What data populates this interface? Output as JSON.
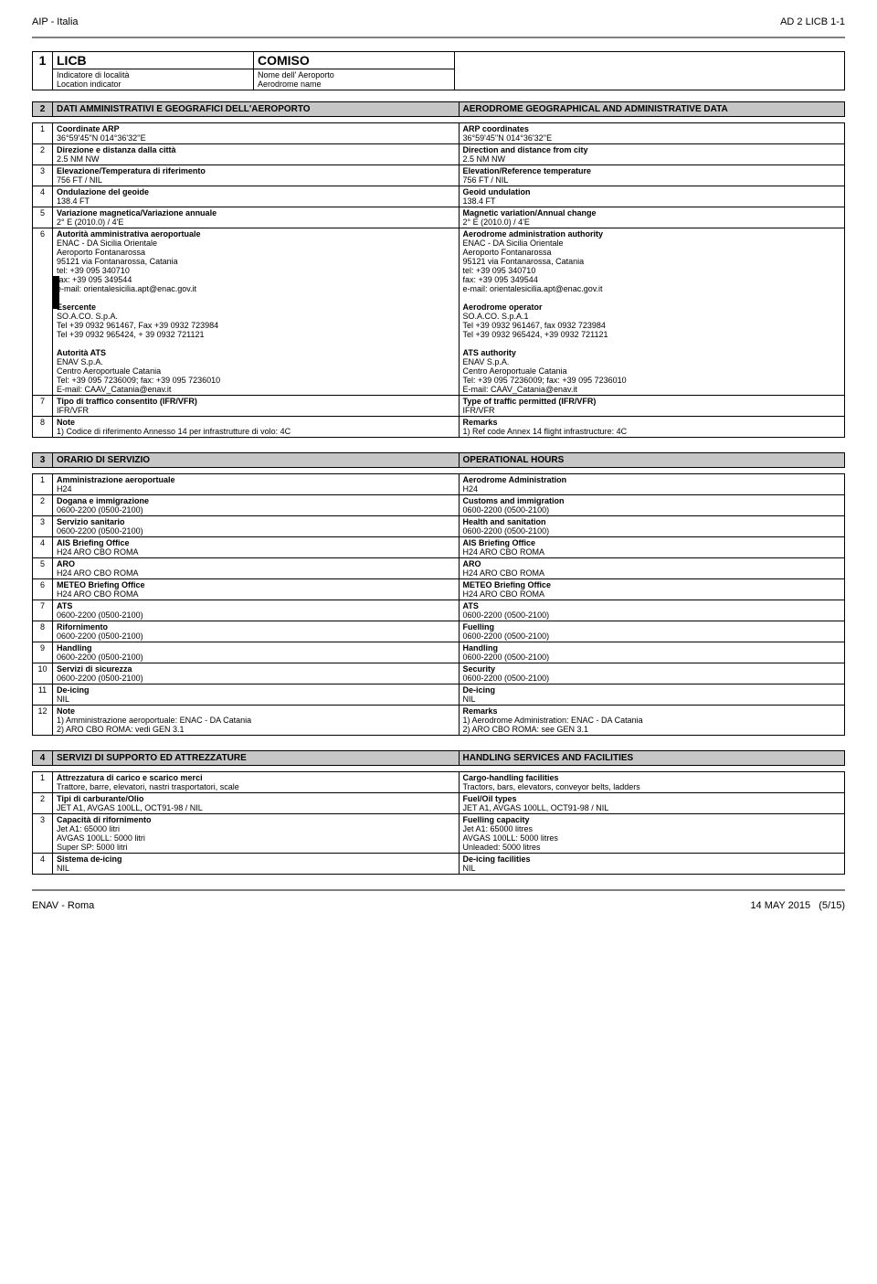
{
  "header": {
    "left": "AIP - Italia",
    "right": "AD 2 LICB 1-1"
  },
  "footer": {
    "left": "ENAV - Roma",
    "date": "14 MAY 2015",
    "page": "(5/15)"
  },
  "s1": {
    "num": "1",
    "code": "LICB",
    "name": "COMISO",
    "sub_it1": "Indicatore di località",
    "sub_it2": "Nome dell' Aeroporto",
    "sub_en1": "Location indicator",
    "sub_en2": "Aerodrome name"
  },
  "s2": {
    "num": "2",
    "title_it": "DATI AMMINISTRATIVI E GEOGRAFICI DELL'AEROPORTO",
    "title_en": "AERODROME GEOGRAPHICAL AND ADMINISTRATIVE DATA",
    "rows": [
      {
        "n": "1",
        "lit": "Coordinate ARP",
        "lval": "36°59'45''N  014°36'32''E",
        "ren": "ARP coordinates",
        "rval": "36°59'45''N  014°36'32''E"
      },
      {
        "n": "2",
        "lit": "Direzione e distanza dalla città",
        "lval": "2.5 NM NW",
        "ren": "Direction and distance from city",
        "rval": "2.5 NM NW"
      },
      {
        "n": "3",
        "lit": "Elevazione/Temperatura di riferimento",
        "lval": "756 FT  / NIL",
        "ren": "Elevation/Reference temperature",
        "rval": "756 FT  / NIL"
      },
      {
        "n": "4",
        "lit": "Ondulazione del geoide",
        "lval": "138.4 FT",
        "ren": "Geoid undulation",
        "rval": "138.4 FT"
      },
      {
        "n": "5",
        "lit": "Variazione magnetica/Variazione annuale",
        "lval": "2° E (2010.0) / 4'E",
        "ren": "Magnetic variation/Annual change",
        "rval": "2° E (2010.0) / 4'E"
      },
      {
        "n": "6",
        "lit": "Autorità amministrativa aeroportuale",
        "lval": "ENAC - DA Sicilia Orientale\nAeroporto Fontanarossa\n95121 via Fontanarossa, Catania\ntel: +39 095 340710\nfax: +39 095 349544\ne-mail: orientalesicilia.apt@enac.gov.it",
        "ren": "Aerodrome administration authority",
        "rval": "ENAC - DA Sicilia Orientale\nAeroporto Fontanarossa\n95121 via Fontanarossa, Catania\ntel: +39 095 340710\nfax: +39 095 349544\ne-mail: orientalesicilia.apt@enac.gov.it",
        "b2it": "Esercente",
        "b2l": "SO.A.CO. S.p.A.\nTel +39 0932 961467, Fax +39 0932 723984\nTel +39 0932 965424, + 39 0932 721121",
        "b2en": "Aerodrome operator",
        "b2r": "SO.A.CO. S.p.A.1\nTel +39 0932 961467, fax 0932 723984\nTel +39 0932 965424, +39 0932 721121",
        "b3it": "Autorità ATS",
        "b3l": "ENAV S.p.A.\nCentro Aeroportuale Catania\nTel: +39 095 7236009; fax: +39 095 7236010\nE-mail: CAAV_Catania@enav.it",
        "b3en": "ATS authority",
        "b3r": "ENAV S.p.A.\nCentro Aeroportuale Catania\nTel: +39 095 7236009; fax: +39 095 7236010\nE-mail: CAAV_Catania@enav.it"
      },
      {
        "n": "7",
        "lit": "Tipo di traffico consentito (IFR/VFR)",
        "lval": "IFR/VFR",
        "ren": "Type of traffic permitted (IFR/VFR)",
        "rval": "IFR/VFR"
      },
      {
        "n": "8",
        "lit": "Note",
        "lval": "1)    Codice di riferimento Annesso 14 per infrastrutture di volo: 4C",
        "ren": "Remarks",
        "rval": "1)    Ref code Annex 14 flight infrastructure: 4C"
      }
    ]
  },
  "s3": {
    "num": "3",
    "title_it": "ORARIO DI SERVIZIO",
    "title_en": "OPERATIONAL HOURS",
    "rows": [
      {
        "n": "1",
        "lit": "Amministrazione aeroportuale",
        "lval": "H24",
        "ren": "Aerodrome Administration",
        "rval": "H24"
      },
      {
        "n": "2",
        "lit": "Dogana e immigrazione",
        "lval": "0600-2200 (0500-2100)",
        "ren": "Customs and immigration",
        "rval": "0600-2200 (0500-2100)"
      },
      {
        "n": "3",
        "lit": "Servizio sanitario",
        "lval": "0600-2200 (0500-2100)",
        "ren": "Health and sanitation",
        "rval": "0600-2200 (0500-2100)"
      },
      {
        "n": "4",
        "lit": "AIS Briefing Office",
        "lval": "H24 ARO CBO ROMA",
        "ren": "AIS Briefing Office",
        "rval": "H24 ARO CBO ROMA"
      },
      {
        "n": "5",
        "lit": "ARO",
        "lval": "H24 ARO CBO ROMA",
        "ren": "ARO",
        "rval": "H24 ARO CBO ROMA"
      },
      {
        "n": "6",
        "lit": "METEO Briefing Office",
        "lval": "H24 ARO CBO ROMA",
        "ren": "METEO Briefing Office",
        "rval": "H24 ARO CBO ROMA"
      },
      {
        "n": "7",
        "lit": "ATS",
        "lval": "0600-2200 (0500-2100)",
        "ren": "ATS",
        "rval": "0600-2200 (0500-2100)"
      },
      {
        "n": "8",
        "lit": "Rifornimento",
        "lval": "0600-2200 (0500-2100)",
        "ren": "Fuelling",
        "rval": "0600-2200 (0500-2100)"
      },
      {
        "n": "9",
        "lit": "Handling",
        "lval": "0600-2200 (0500-2100)",
        "ren": "Handling",
        "rval": "0600-2200 (0500-2100)"
      },
      {
        "n": "10",
        "lit": "Servizi di sicurezza",
        "lval": "0600-2200 (0500-2100)",
        "ren": "Security",
        "rval": "0600-2200 (0500-2100)"
      },
      {
        "n": "11",
        "lit": "De-icing",
        "lval": "NIL",
        "ren": "De-icing",
        "rval": "NIL"
      },
      {
        "n": "12",
        "lit": "Note",
        "lval": "1) Amministrazione aeroportuale: ENAC - DA Catania\n2) ARO CBO ROMA: vedi GEN 3.1",
        "ren": "Remarks",
        "rval": "1) Aerodrome Administration: ENAC - DA Catania\n2) ARO CBO ROMA: see GEN 3.1"
      }
    ]
  },
  "s4": {
    "num": "4",
    "title_it": "SERVIZI DI SUPPORTO ED ATTREZZATURE",
    "title_en": "HANDLING SERVICES AND FACILITIES",
    "rows": [
      {
        "n": "1",
        "lit": "Attrezzatura di carico e scarico merci",
        "lval": "Trattore, barre, elevatori, nastri trasportatori, scale",
        "ren": "Cargo-handling facilities",
        "rval": "Tractors, bars, elevators, conveyor belts, ladders"
      },
      {
        "n": "2",
        "lit": "Tipi di carburante/Olio",
        "lval": "JET A1, AVGAS 100LL, OCT91-98 / NIL",
        "ren": "Fuel/Oil types",
        "rval": "JET A1, AVGAS 100LL, OCT91-98 / NIL"
      },
      {
        "n": "3",
        "lit": "Capacità di rifornimento",
        "lval": "Jet A1: 65000 litri\nAVGAS 100LL: 5000 litri\nSuper SP: 5000 litri",
        "ren": "Fuelling capacity",
        "rval": "Jet A1: 65000 litres\nAVGAS 100LL: 5000 litres\nUnleaded: 5000 litres"
      },
      {
        "n": "4",
        "lit": "Sistema de-icing",
        "lval": "NIL",
        "ren": "De-icing facilities",
        "rval": "NIL"
      }
    ]
  }
}
